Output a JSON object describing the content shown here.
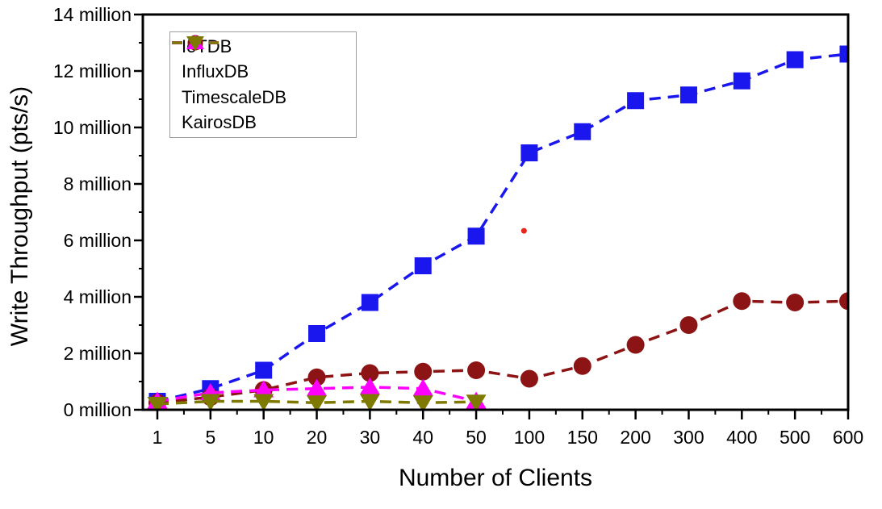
{
  "figure": {
    "background": "#ffffff",
    "frame_color": "#000000"
  },
  "chart_data": {
    "type": "line",
    "title": "",
    "xlabel": "Number of Clients",
    "ylabel": "Write Throughput (pts/s)",
    "x_categories": [
      "1",
      "5",
      "10",
      "20",
      "30",
      "40",
      "50",
      "100",
      "150",
      "200",
      "300",
      "400",
      "500",
      "600"
    ],
    "y_axis": {
      "min": 0,
      "max": 14,
      "unit": "million",
      "major_step": 2,
      "minor_step": 1,
      "tick_labels": [
        "0 million",
        "2 million",
        "4 million",
        "6 million",
        "8 million",
        "10 million",
        "12 million",
        "14 million"
      ]
    },
    "grid": false,
    "legend": {
      "position": "top-left",
      "border_color": "#9e9e9e"
    },
    "series": [
      {
        "name": "IoTDB",
        "color": "#1a16ee",
        "marker": "square",
        "values_millions": [
          0.3,
          0.75,
          1.4,
          2.7,
          3.8,
          5.1,
          6.15,
          9.1,
          9.85,
          10.95,
          11.15,
          11.65,
          12.4,
          12.6
        ]
      },
      {
        "name": "InfluxDB",
        "color": "#8c1414",
        "marker": "circle",
        "values_millions": [
          0.25,
          0.45,
          0.7,
          1.15,
          1.3,
          1.35,
          1.4,
          1.1,
          1.55,
          2.3,
          3.0,
          3.85,
          3.8,
          3.85
        ]
      },
      {
        "name": "TimescaleDB",
        "color": "#ff00ff",
        "marker": "triangle-up",
        "values_millions": [
          0.3,
          0.6,
          0.7,
          0.75,
          0.8,
          0.75,
          0.3,
          null,
          null,
          null,
          null,
          null,
          null,
          null
        ]
      },
      {
        "name": "KairosDB",
        "color": "#7e7a00",
        "marker": "triangle-down",
        "values_millions": [
          0.2,
          0.3,
          0.3,
          0.25,
          0.3,
          0.25,
          0.28,
          null,
          null,
          null,
          null,
          null,
          null,
          null
        ]
      }
    ],
    "annotations": [
      {
        "type": "stray-dot",
        "color": "#e8251d",
        "x_category_index": 6.9,
        "y_value_millions": 6.34
      }
    ]
  }
}
